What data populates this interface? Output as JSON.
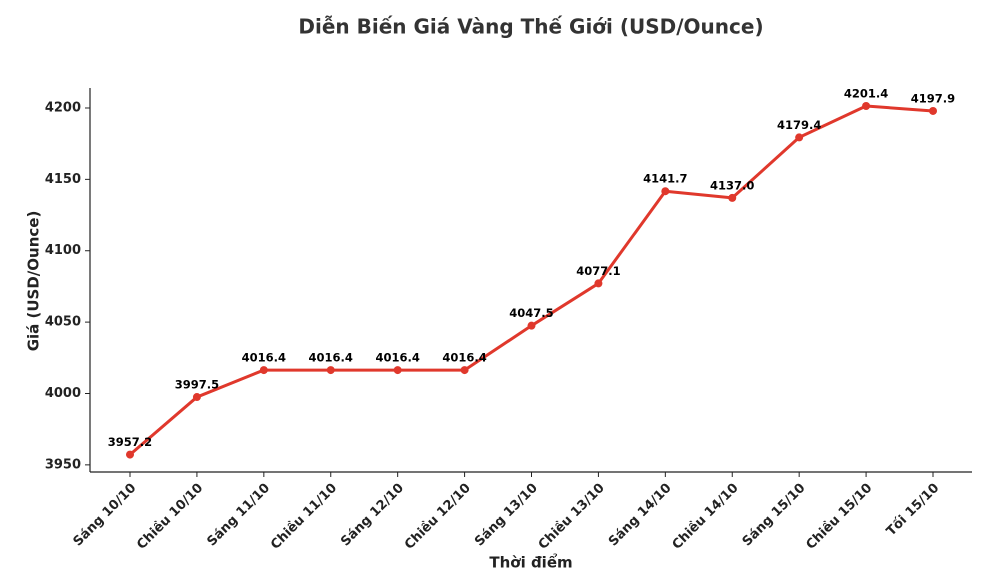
{
  "chart_data": {
    "type": "line",
    "title": "Diễn Biến Giá Vàng Thế Giới (USD/Ounce)",
    "x_label": "Thời điểm",
    "y_label": "Giá (USD/Ounce)",
    "categories": [
      "Sáng 10/10",
      "Chiều 10/10",
      "Sáng 11/10",
      "Chiều 11/10",
      "Sáng 12/10",
      "Chiều 12/10",
      "Sáng 13/10",
      "Chiều 13/10",
      "Sáng 14/10",
      "Chiều 14/10",
      "Sáng 15/10",
      "Chiều 15/10",
      "Tối 15/10"
    ],
    "values": [
      3957.2,
      3997.5,
      4016.4,
      4016.4,
      4016.4,
      4016.4,
      4047.5,
      4077.1,
      4141.7,
      4137.0,
      4179.4,
      4201.4,
      4197.9
    ],
    "value_labels": [
      "3957.2",
      "3997.5",
      "4016.4",
      "4016.4",
      "4016.4",
      "4016.4",
      "4047.5",
      "4077.1",
      "4141.7",
      "4137.0",
      "4179.4",
      "4201.4",
      "4197.9"
    ],
    "color": "#e0382c",
    "ylim": [
      3945,
      4214
    ],
    "yticks": [
      3950,
      4000,
      4050,
      4100,
      4150,
      4200
    ]
  }
}
